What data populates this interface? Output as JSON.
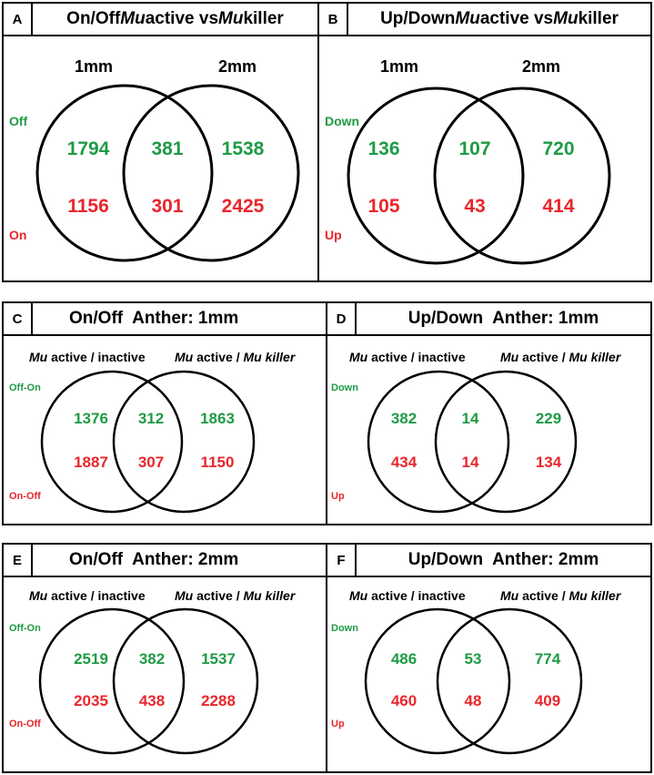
{
  "colors": {
    "green": "#1f9a45",
    "red": "#e8262b"
  },
  "panels": [
    {
      "letter": "A",
      "title": {
        "pre": "On/Off ",
        "i1": "Mu",
        "mid": " active vs ",
        "i2": "Mu",
        "post": " killer"
      },
      "left_set": "1mm",
      "right_set": "2mm",
      "top_row_label": "Off",
      "bottom_row_label": "On",
      "top_row": [
        "1794",
        "381",
        "1538"
      ],
      "bottom_row": [
        "1156",
        "301",
        "2425"
      ]
    },
    {
      "letter": "B",
      "title": {
        "pre": "Up/Down ",
        "i1": "Mu",
        "mid": " active vs ",
        "i2": "Mu",
        "post": " killer"
      },
      "left_set": "1mm",
      "right_set": "2mm",
      "top_row_label": "Down",
      "bottom_row_label": "Up",
      "top_row": [
        "136",
        "107",
        "720"
      ],
      "bottom_row": [
        "105",
        "43",
        "414"
      ]
    },
    {
      "letter": "C",
      "title": {
        "a": "On/Off",
        "b": "Anther: 1mm"
      },
      "left_set": {
        "i": "Mu",
        "rest": " active / inactive"
      },
      "right_set": {
        "i": "Mu",
        "rest": " active / ",
        "i2": "Mu killer"
      },
      "top_row_label": "Off-On",
      "bottom_row_label": "On-Off",
      "top_row": [
        "1376",
        "312",
        "1863"
      ],
      "bottom_row": [
        "1887",
        "307",
        "1150"
      ]
    },
    {
      "letter": "D",
      "title": {
        "a": "Up/Down",
        "b": "Anther: 1mm"
      },
      "left_set": {
        "i": "Mu",
        "rest": " active / inactive"
      },
      "right_set": {
        "i": "Mu",
        "rest": " active / ",
        "i2": "Mu killer"
      },
      "top_row_label": "Down",
      "bottom_row_label": "Up",
      "top_row": [
        "382",
        "14",
        "229"
      ],
      "bottom_row": [
        "434",
        "14",
        "134"
      ]
    },
    {
      "letter": "E",
      "title": {
        "a": "On/Off",
        "b": "Anther: 2mm"
      },
      "left_set": {
        "i": "Mu",
        "rest": " active / inactive"
      },
      "right_set": {
        "i": "Mu",
        "rest": " active / ",
        "i2": "Mu killer"
      },
      "top_row_label": "Off-On",
      "bottom_row_label": "On-Off",
      "top_row": [
        "2519",
        "382",
        "1537"
      ],
      "bottom_row": [
        "2035",
        "438",
        "2288"
      ]
    },
    {
      "letter": "F",
      "title": {
        "a": "Up/Down",
        "b": "Anther: 2mm"
      },
      "left_set": {
        "i": "Mu",
        "rest": " active / inactive"
      },
      "right_set": {
        "i": "Mu",
        "rest": " active / ",
        "i2": "Mu killer"
      },
      "top_row_label": "Down",
      "bottom_row_label": "Up",
      "top_row": [
        "486",
        "53",
        "774"
      ],
      "bottom_row": [
        "460",
        "48",
        "409"
      ]
    }
  ]
}
